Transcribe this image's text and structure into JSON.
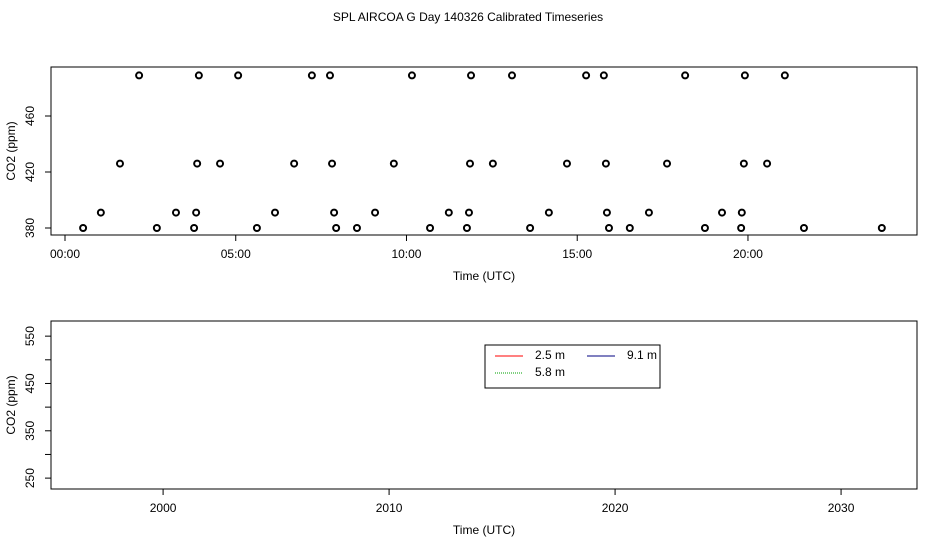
{
  "chart_data": [
    {
      "type": "scatter",
      "title": "SPL AIRCOA G  Day 140326  Calibrated Timeseries",
      "xlabel": "Time (UTC)",
      "ylabel": "CO2 (ppm)",
      "xlim": [
        -0.41,
        24.95
      ],
      "ylim": [
        375,
        495
      ],
      "xticks": [
        {
          "value": 0,
          "label": "00:00"
        },
        {
          "value": 5,
          "label": "05:00"
        },
        {
          "value": 10,
          "label": "10:00"
        },
        {
          "value": 15,
          "label": "15:00"
        },
        {
          "value": 20,
          "label": "20:00"
        }
      ],
      "yticks": [
        380,
        420,
        460
      ],
      "color": "#000000",
      "x": [
        2.17,
        3.92,
        5.07,
        7.23,
        7.76,
        10.16,
        11.89,
        13.09,
        15.26,
        15.78,
        18.16,
        19.91,
        21.08,
        1.61,
        3.87,
        4.54,
        6.71,
        7.82,
        9.63,
        11.86,
        12.53,
        14.7,
        15.84,
        17.63,
        19.88,
        20.56,
        1.05,
        3.25,
        3.84,
        6.15,
        7.88,
        9.08,
        11.24,
        11.83,
        14.17,
        15.87,
        17.1,
        19.24,
        19.82,
        0.53,
        2.69,
        3.78,
        5.62,
        7.94,
        8.55,
        10.69,
        11.77,
        13.62,
        15.93,
        16.54,
        18.74,
        19.8,
        21.64,
        23.92
      ],
      "values": [
        489,
        489,
        489,
        489,
        489,
        489,
        489,
        489,
        489,
        489,
        489,
        489,
        489,
        426,
        426,
        426,
        426,
        426,
        426,
        426,
        426,
        426,
        426,
        426,
        426,
        426,
        391,
        391,
        391,
        391,
        391,
        391,
        391,
        391,
        391,
        391,
        391,
        391,
        391,
        380,
        380,
        380,
        380,
        380,
        380,
        380,
        380,
        380,
        380,
        380,
        380,
        380,
        380,
        380
      ]
    },
    {
      "type": "line",
      "xlabel": "Time (UTC)",
      "ylabel": "CO2 (ppm)",
      "xlim": [
        1995.04,
        2033.36
      ],
      "ylim": [
        227,
        582
      ],
      "xticks": [
        2000,
        2010,
        2020,
        2030
      ],
      "yticks": [
        250,
        350,
        450,
        550
      ],
      "minor_yticks": [
        300,
        400,
        500
      ],
      "legend": "top",
      "series": [
        {
          "name": "2.5 m",
          "color": "#ff0000",
          "linestyle": "solid",
          "values": []
        },
        {
          "name": "5.8 m",
          "color": "#00a000",
          "linestyle": "dotted",
          "values": []
        },
        {
          "name": "9.1 m",
          "color": "#000080",
          "linestyle": "solid",
          "values": []
        }
      ]
    }
  ]
}
